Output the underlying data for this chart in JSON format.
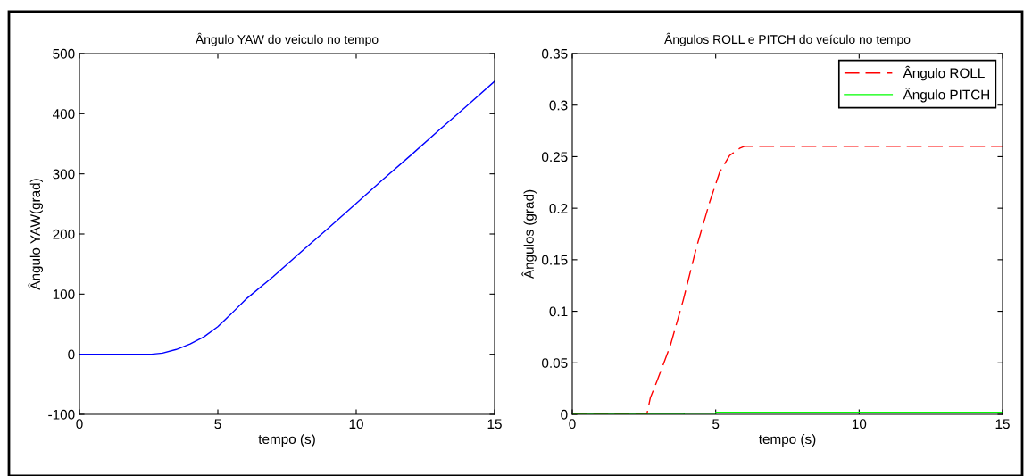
{
  "chart_data": [
    {
      "type": "line",
      "title": "Ângulo YAW do veiculo no tempo",
      "xlabel": "tempo (s)",
      "ylabel": "Ângulo YAW(grad)",
      "xlim": [
        0,
        15
      ],
      "xticks": [
        0,
        5,
        10,
        15
      ],
      "ylim": [
        -100,
        500
      ],
      "yticks": [
        -100,
        0,
        100,
        200,
        300,
        400,
        500
      ],
      "grid": false,
      "legend": false,
      "series": [
        {
          "color": "#0000ff",
          "x": [
            0,
            2.6,
            3.0,
            3.5,
            4.0,
            4.5,
            5.0,
            5.5,
            6.0,
            7.0,
            8.0,
            9.0,
            10.0,
            11.0,
            12.0,
            13.0,
            14.0,
            15.0
          ],
          "values": [
            0,
            0,
            2,
            8,
            17,
            29,
            46,
            68,
            91,
            129,
            170,
            210,
            251,
            292,
            332,
            373,
            413,
            454
          ]
        }
      ]
    },
    {
      "type": "line",
      "title": "Ângulos ROLL e PITCH do veículo no tempo",
      "xlabel": "tempo (s)",
      "ylabel": "Ângulos (grad)",
      "xlim": [
        0,
        15
      ],
      "xticks": [
        0,
        5,
        10,
        15
      ],
      "ylim": [
        0,
        0.35
      ],
      "yticks": [
        0,
        0.05,
        0.1,
        0.15,
        0.2,
        0.25,
        0.3,
        0.35
      ],
      "grid": false,
      "legend": "top right",
      "series": [
        {
          "name": "Ângulo ROLL",
          "color": "#ff0000",
          "line_style": "dashed",
          "x": [
            0,
            2.6,
            2.72,
            2.95,
            3.41,
            3.87,
            4.33,
            4.79,
            5.14,
            5.48,
            5.83,
            6.0,
            15.0
          ],
          "values": [
            0,
            0,
            0.016,
            0.032,
            0.066,
            0.111,
            0.162,
            0.206,
            0.235,
            0.251,
            0.258,
            0.26,
            0.26
          ]
        },
        {
          "name": "Ângulo PITCH",
          "color": "#00ff00",
          "line_style": "solid",
          "x": [
            0,
            3.9,
            3.9,
            5.0,
            5.0,
            15.0
          ],
          "values": [
            0,
            0,
            0.001,
            0.001,
            0.002,
            0.002
          ]
        }
      ]
    }
  ]
}
